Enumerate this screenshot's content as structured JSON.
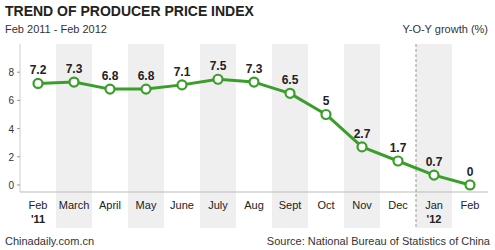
{
  "chart_data": {
    "type": "line",
    "title": "TREND OF PRODUCER PRICE INDEX",
    "subtitle": "Feb 2011 - Feb 2012",
    "y_label": "Y-O-Y growth (%)",
    "categories": [
      "Feb",
      "March",
      "April",
      "May",
      "June",
      "July",
      "Aug",
      "Sept",
      "Oct",
      "Nov",
      "Dec",
      "Jan",
      "Feb"
    ],
    "values": [
      7.2,
      7.3,
      6.8,
      6.8,
      7.1,
      7.5,
      7.3,
      6.5,
      5,
      2.7,
      1.7,
      0.7,
      0
    ],
    "color": "#3a9e2a",
    "marker": "circle",
    "ylim": [
      -0.5,
      10
    ],
    "yticks": [
      0,
      2,
      4,
      6,
      8
    ],
    "grid": false,
    "data_labels": true,
    "annotations": [
      {
        "text": "'11",
        "category_index": 0
      },
      {
        "text": "'12",
        "category_index": 11
      }
    ],
    "credit": "Chinadaily.com.cn",
    "source": "Source: National Bureau of Statistics of China"
  }
}
